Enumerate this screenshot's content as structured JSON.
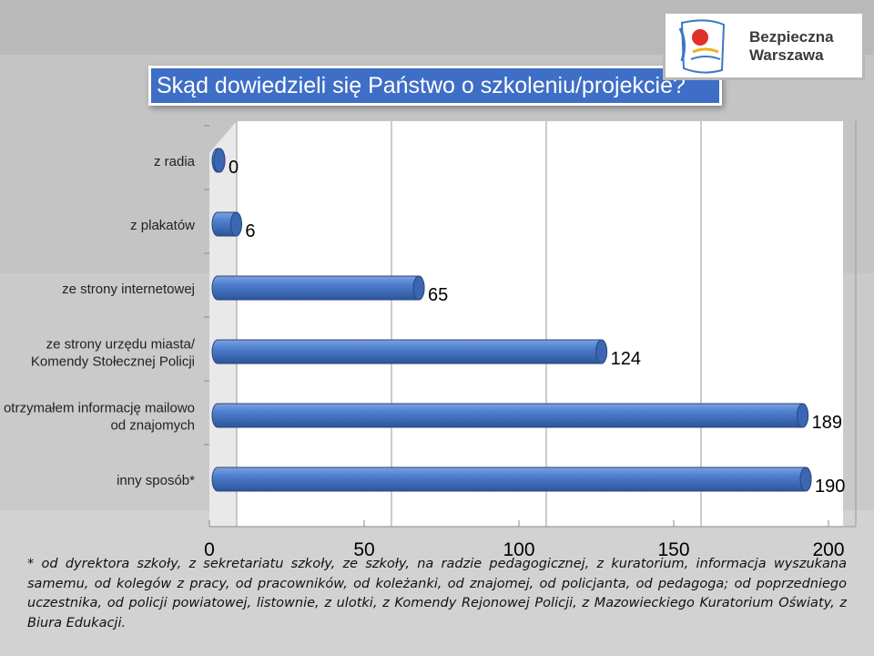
{
  "slide": {
    "title": "Skąd dowiedzieli się Państwo o szkoleniu/projekcie?",
    "logo_line1": "Bezpieczna",
    "logo_line2": "Warszawa",
    "footnote": "* od dyrektora szkoły, z sekretariatu szkoły, ze szkoły, na radzie pedagogicznej, z kuratorium, informacja wyszukana samemu, od kolegów z pracy, od pracowników, od koleżanki, od znajomej, od policjanta, od pedagoga; od poprzedniego uczestnika, od policji powiatowej, listownie, z ulotki, z Komendy Rejonowej Policji, z Mazowieckiego Kuratorium Oświaty, z Biura Edukacji."
  },
  "colors": {
    "background": "#c9c9c9",
    "title_bg": "#3f6ec6",
    "bar_main": "#4472c4",
    "bar_dark": "#2a4f8f",
    "plot_bg": "#ffffff"
  },
  "chart_data": {
    "type": "bar",
    "orientation": "horizontal",
    "style": "3d-cylinder",
    "categories": [
      "z radia",
      "z plakatów",
      "ze strony internetowej",
      "ze strony urzędu miasta/ Komendy Stołecznej Policji",
      "otrzymałem informację mailowo od znajomych",
      "inny sposób*"
    ],
    "category_lines": [
      [
        "z radia"
      ],
      [
        "z plakatów"
      ],
      [
        "ze strony internetowej"
      ],
      [
        "ze strony urzędu miasta/",
        "Komendy Stołecznej Policji"
      ],
      [
        "otrzymałem informację mailowo",
        "od znajomych"
      ],
      [
        "inny sposób*"
      ]
    ],
    "values": [
      0,
      6,
      65,
      124,
      189,
      190
    ],
    "data_labels": [
      "0",
      "6",
      "65",
      "124",
      "189",
      "190"
    ],
    "xlim": [
      0,
      200
    ],
    "x_ticks": [
      0,
      50,
      100,
      150,
      200
    ],
    "x_tick_labels": [
      "0",
      "50",
      "100",
      "150",
      "200"
    ],
    "grid": true,
    "legend": "none"
  }
}
